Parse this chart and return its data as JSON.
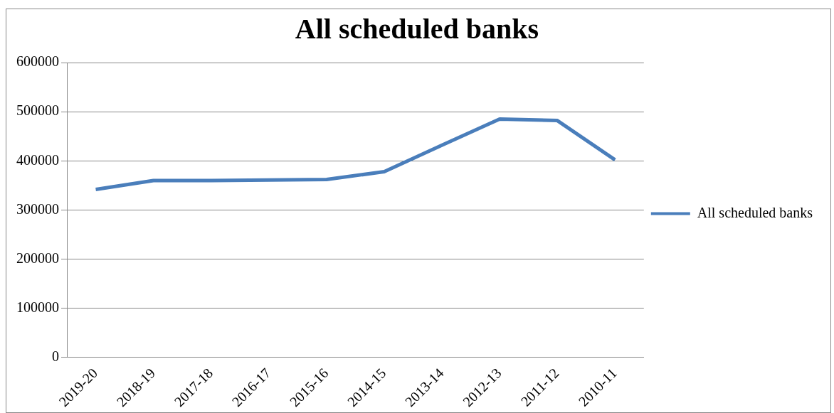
{
  "chart_data": {
    "type": "line",
    "title": "All scheduled banks",
    "categories": [
      "2019-20",
      "2018-19",
      "2017-18",
      "2016-17",
      "2015-16",
      "2014-15",
      "2013-14",
      "2012-13",
      "2011-12",
      "2010-11"
    ],
    "series": [
      {
        "name": "All scheduled banks",
        "color": "#4a7ebb",
        "values": [
          342000,
          360000,
          360000,
          361000,
          362000,
          378000,
          432000,
          485000,
          482000,
          402000
        ]
      }
    ],
    "ylim": [
      0,
      600000
    ],
    "yticks": [
      0,
      100000,
      200000,
      300000,
      400000,
      500000,
      600000
    ],
    "grid": "y",
    "legend": "right",
    "marker": "none",
    "line_style": "solid"
  }
}
